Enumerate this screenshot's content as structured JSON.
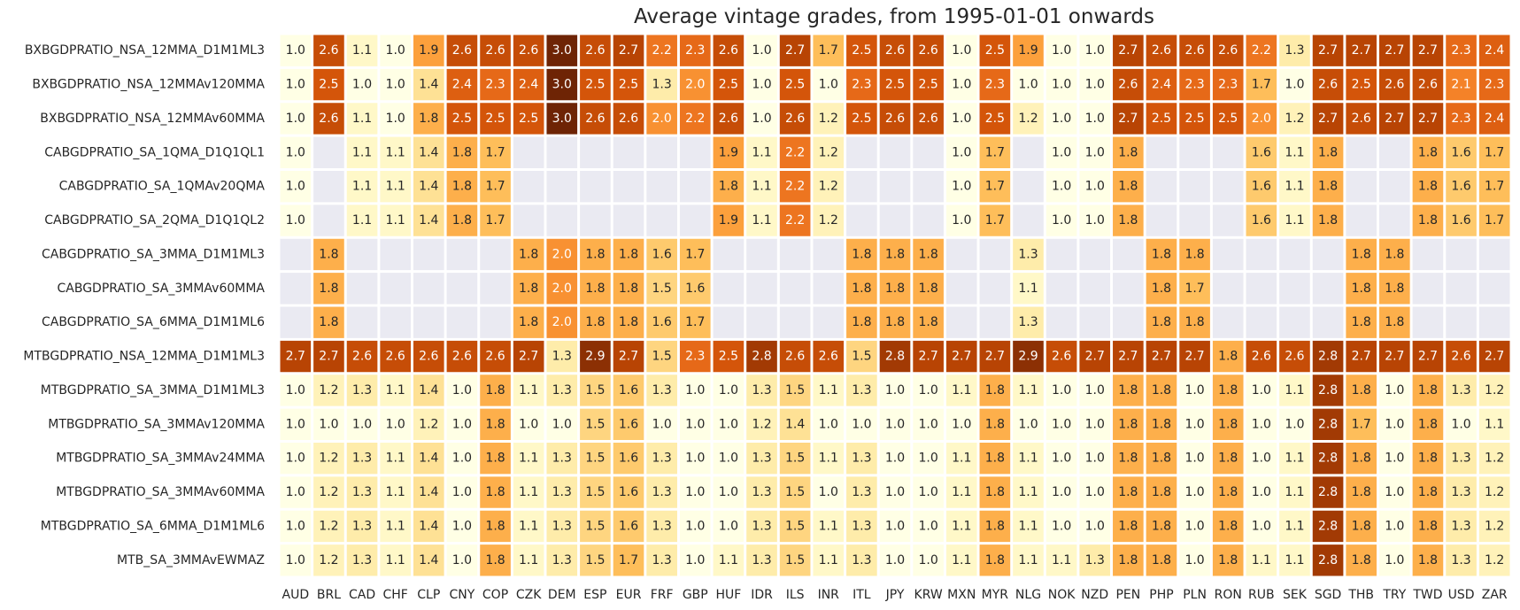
{
  "chart_data": {
    "type": "heatmap",
    "title": "Average vintage grades, from 1995-01-01 onwards",
    "xlabel": "",
    "ylabel": "",
    "colormap": "YlOrBr",
    "value_range": [
      1.0,
      3.0
    ],
    "missing_color": "#eaeaf2",
    "columns": [
      "AUD",
      "BRL",
      "CAD",
      "CHF",
      "CLP",
      "CNY",
      "COP",
      "CZK",
      "DEM",
      "ESP",
      "EUR",
      "FRF",
      "GBP",
      "HUF",
      "IDR",
      "ILS",
      "INR",
      "ITL",
      "JPY",
      "KRW",
      "MXN",
      "MYR",
      "NLG",
      "NOK",
      "NZD",
      "PEN",
      "PHP",
      "PLN",
      "RON",
      "RUB",
      "SEK",
      "SGD",
      "THB",
      "TRY",
      "TWD",
      "USD",
      "ZAR"
    ],
    "rows": [
      {
        "label": "BXBGDPRATIO_NSA_12MMA_D1M1ML3",
        "values": [
          1.0,
          2.6,
          1.1,
          1.0,
          1.9,
          2.6,
          2.6,
          2.6,
          3.0,
          2.6,
          2.7,
          2.2,
          2.3,
          2.6,
          1.0,
          2.7,
          1.7,
          2.5,
          2.6,
          2.6,
          1.0,
          2.5,
          1.9,
          1.0,
          1.0,
          2.7,
          2.6,
          2.6,
          2.6,
          2.2,
          1.3,
          2.7,
          2.7,
          2.7,
          2.7,
          2.3,
          2.4
        ]
      },
      {
        "label": "BXBGDPRATIO_NSA_12MMAv120MMA",
        "values": [
          1.0,
          2.5,
          1.0,
          1.0,
          1.4,
          2.4,
          2.3,
          2.4,
          3.0,
          2.5,
          2.5,
          1.3,
          2.0,
          2.5,
          1.0,
          2.5,
          1.0,
          2.3,
          2.5,
          2.5,
          1.0,
          2.3,
          1.0,
          1.0,
          1.0,
          2.6,
          2.4,
          2.3,
          2.3,
          1.7,
          1.0,
          2.6,
          2.5,
          2.6,
          2.6,
          2.1,
          2.3
        ]
      },
      {
        "label": "BXBGDPRATIO_NSA_12MMAv60MMA",
        "values": [
          1.0,
          2.6,
          1.1,
          1.0,
          1.8,
          2.5,
          2.5,
          2.5,
          3.0,
          2.6,
          2.6,
          2.0,
          2.2,
          2.6,
          1.0,
          2.6,
          1.2,
          2.5,
          2.6,
          2.6,
          1.0,
          2.5,
          1.2,
          1.0,
          1.0,
          2.7,
          2.5,
          2.5,
          2.5,
          2.0,
          1.2,
          2.7,
          2.6,
          2.7,
          2.7,
          2.3,
          2.4
        ]
      },
      {
        "label": "CABGDPRATIO_SA_1QMA_D1Q1QL1",
        "values": [
          1.0,
          null,
          1.1,
          1.1,
          1.4,
          1.8,
          1.7,
          null,
          null,
          null,
          null,
          null,
          null,
          1.9,
          1.1,
          2.2,
          1.2,
          null,
          null,
          null,
          1.0,
          1.7,
          null,
          1.0,
          1.0,
          1.8,
          null,
          null,
          null,
          1.6,
          1.1,
          1.8,
          null,
          null,
          1.8,
          1.6,
          1.7
        ]
      },
      {
        "label": "CABGDPRATIO_SA_1QMAv20QMA",
        "values": [
          1.0,
          null,
          1.1,
          1.1,
          1.4,
          1.8,
          1.7,
          null,
          null,
          null,
          null,
          null,
          null,
          1.8,
          1.1,
          2.2,
          1.2,
          null,
          null,
          null,
          1.0,
          1.7,
          null,
          1.0,
          1.0,
          1.8,
          null,
          null,
          null,
          1.6,
          1.1,
          1.8,
          null,
          null,
          1.8,
          1.6,
          1.7
        ]
      },
      {
        "label": "CABGDPRATIO_SA_2QMA_D1Q1QL2",
        "values": [
          1.0,
          null,
          1.1,
          1.1,
          1.4,
          1.8,
          1.7,
          null,
          null,
          null,
          null,
          null,
          null,
          1.9,
          1.1,
          2.2,
          1.2,
          null,
          null,
          null,
          1.0,
          1.7,
          null,
          1.0,
          1.0,
          1.8,
          null,
          null,
          null,
          1.6,
          1.1,
          1.8,
          null,
          null,
          1.8,
          1.6,
          1.7
        ]
      },
      {
        "label": "CABGDPRATIO_SA_3MMA_D1M1ML3",
        "values": [
          null,
          1.8,
          null,
          null,
          null,
          null,
          null,
          1.8,
          2.0,
          1.8,
          1.8,
          1.6,
          1.7,
          null,
          null,
          null,
          null,
          1.8,
          1.8,
          1.8,
          null,
          null,
          1.3,
          null,
          null,
          null,
          1.8,
          1.8,
          null,
          null,
          null,
          null,
          1.8,
          1.8,
          null,
          null,
          null
        ]
      },
      {
        "label": "CABGDPRATIO_SA_3MMAv60MMA",
        "values": [
          null,
          1.8,
          null,
          null,
          null,
          null,
          null,
          1.8,
          2.0,
          1.8,
          1.8,
          1.5,
          1.6,
          null,
          null,
          null,
          null,
          1.8,
          1.8,
          1.8,
          null,
          null,
          1.1,
          null,
          null,
          null,
          1.8,
          1.7,
          null,
          null,
          null,
          null,
          1.8,
          1.8,
          null,
          null,
          null
        ]
      },
      {
        "label": "CABGDPRATIO_SA_6MMA_D1M1ML6",
        "values": [
          null,
          1.8,
          null,
          null,
          null,
          null,
          null,
          1.8,
          2.0,
          1.8,
          1.8,
          1.6,
          1.7,
          null,
          null,
          null,
          null,
          1.8,
          1.8,
          1.8,
          null,
          null,
          1.3,
          null,
          null,
          null,
          1.8,
          1.8,
          null,
          null,
          null,
          null,
          1.8,
          1.8,
          null,
          null,
          null
        ]
      },
      {
        "label": "MTBGDPRATIO_NSA_12MMA_D1M1ML3",
        "values": [
          2.7,
          2.7,
          2.6,
          2.6,
          2.6,
          2.6,
          2.6,
          2.7,
          1.3,
          2.9,
          2.7,
          1.5,
          2.3,
          2.5,
          2.8,
          2.6,
          2.6,
          1.5,
          2.8,
          2.7,
          2.7,
          2.7,
          2.9,
          2.6,
          2.7,
          2.7,
          2.7,
          2.7,
          1.8,
          2.6,
          2.6,
          2.8,
          2.7,
          2.7,
          2.7,
          2.6,
          2.7
        ]
      },
      {
        "label": "MTBGDPRATIO_SA_3MMA_D1M1ML3",
        "values": [
          1.0,
          1.2,
          1.3,
          1.1,
          1.4,
          1.0,
          1.8,
          1.1,
          1.3,
          1.5,
          1.6,
          1.3,
          1.0,
          1.0,
          1.3,
          1.5,
          1.1,
          1.3,
          1.0,
          1.0,
          1.1,
          1.8,
          1.1,
          1.0,
          1.0,
          1.8,
          1.8,
          1.0,
          1.8,
          1.0,
          1.1,
          2.8,
          1.8,
          1.0,
          1.8,
          1.3,
          1.2
        ]
      },
      {
        "label": "MTBGDPRATIO_SA_3MMAv120MMA",
        "values": [
          1.0,
          1.0,
          1.0,
          1.0,
          1.2,
          1.0,
          1.8,
          1.0,
          1.0,
          1.5,
          1.6,
          1.0,
          1.0,
          1.0,
          1.2,
          1.4,
          1.0,
          1.0,
          1.0,
          1.0,
          1.0,
          1.8,
          1.0,
          1.0,
          1.0,
          1.8,
          1.8,
          1.0,
          1.8,
          1.0,
          1.0,
          2.8,
          1.7,
          1.0,
          1.8,
          1.0,
          1.1
        ]
      },
      {
        "label": "MTBGDPRATIO_SA_3MMAv24MMA",
        "values": [
          1.0,
          1.2,
          1.3,
          1.1,
          1.4,
          1.0,
          1.8,
          1.1,
          1.3,
          1.5,
          1.6,
          1.3,
          1.0,
          1.0,
          1.3,
          1.5,
          1.1,
          1.3,
          1.0,
          1.0,
          1.1,
          1.8,
          1.1,
          1.0,
          1.0,
          1.8,
          1.8,
          1.0,
          1.8,
          1.0,
          1.1,
          2.8,
          1.8,
          1.0,
          1.8,
          1.3,
          1.2
        ]
      },
      {
        "label": "MTBGDPRATIO_SA_3MMAv60MMA",
        "values": [
          1.0,
          1.2,
          1.3,
          1.1,
          1.4,
          1.0,
          1.8,
          1.1,
          1.3,
          1.5,
          1.6,
          1.3,
          1.0,
          1.0,
          1.3,
          1.5,
          1.0,
          1.3,
          1.0,
          1.0,
          1.1,
          1.8,
          1.1,
          1.0,
          1.0,
          1.8,
          1.8,
          1.0,
          1.8,
          1.0,
          1.1,
          2.8,
          1.8,
          1.0,
          1.8,
          1.3,
          1.2
        ]
      },
      {
        "label": "MTBGDPRATIO_SA_6MMA_D1M1ML6",
        "values": [
          1.0,
          1.2,
          1.3,
          1.1,
          1.4,
          1.0,
          1.8,
          1.1,
          1.3,
          1.5,
          1.6,
          1.3,
          1.0,
          1.0,
          1.3,
          1.5,
          1.1,
          1.3,
          1.0,
          1.0,
          1.1,
          1.8,
          1.1,
          1.0,
          1.0,
          1.8,
          1.8,
          1.0,
          1.8,
          1.0,
          1.1,
          2.8,
          1.8,
          1.0,
          1.8,
          1.3,
          1.2
        ]
      },
      {
        "label": "MTB_SA_3MMAvEWMAZ",
        "values": [
          1.0,
          1.2,
          1.3,
          1.1,
          1.4,
          1.0,
          1.8,
          1.1,
          1.3,
          1.5,
          1.7,
          1.3,
          1.0,
          1.1,
          1.3,
          1.5,
          1.1,
          1.3,
          1.0,
          1.0,
          1.1,
          1.8,
          1.1,
          1.1,
          1.3,
          1.8,
          1.8,
          1.0,
          1.8,
          1.1,
          1.1,
          2.8,
          1.8,
          1.0,
          1.8,
          1.3,
          1.2
        ]
      }
    ]
  }
}
